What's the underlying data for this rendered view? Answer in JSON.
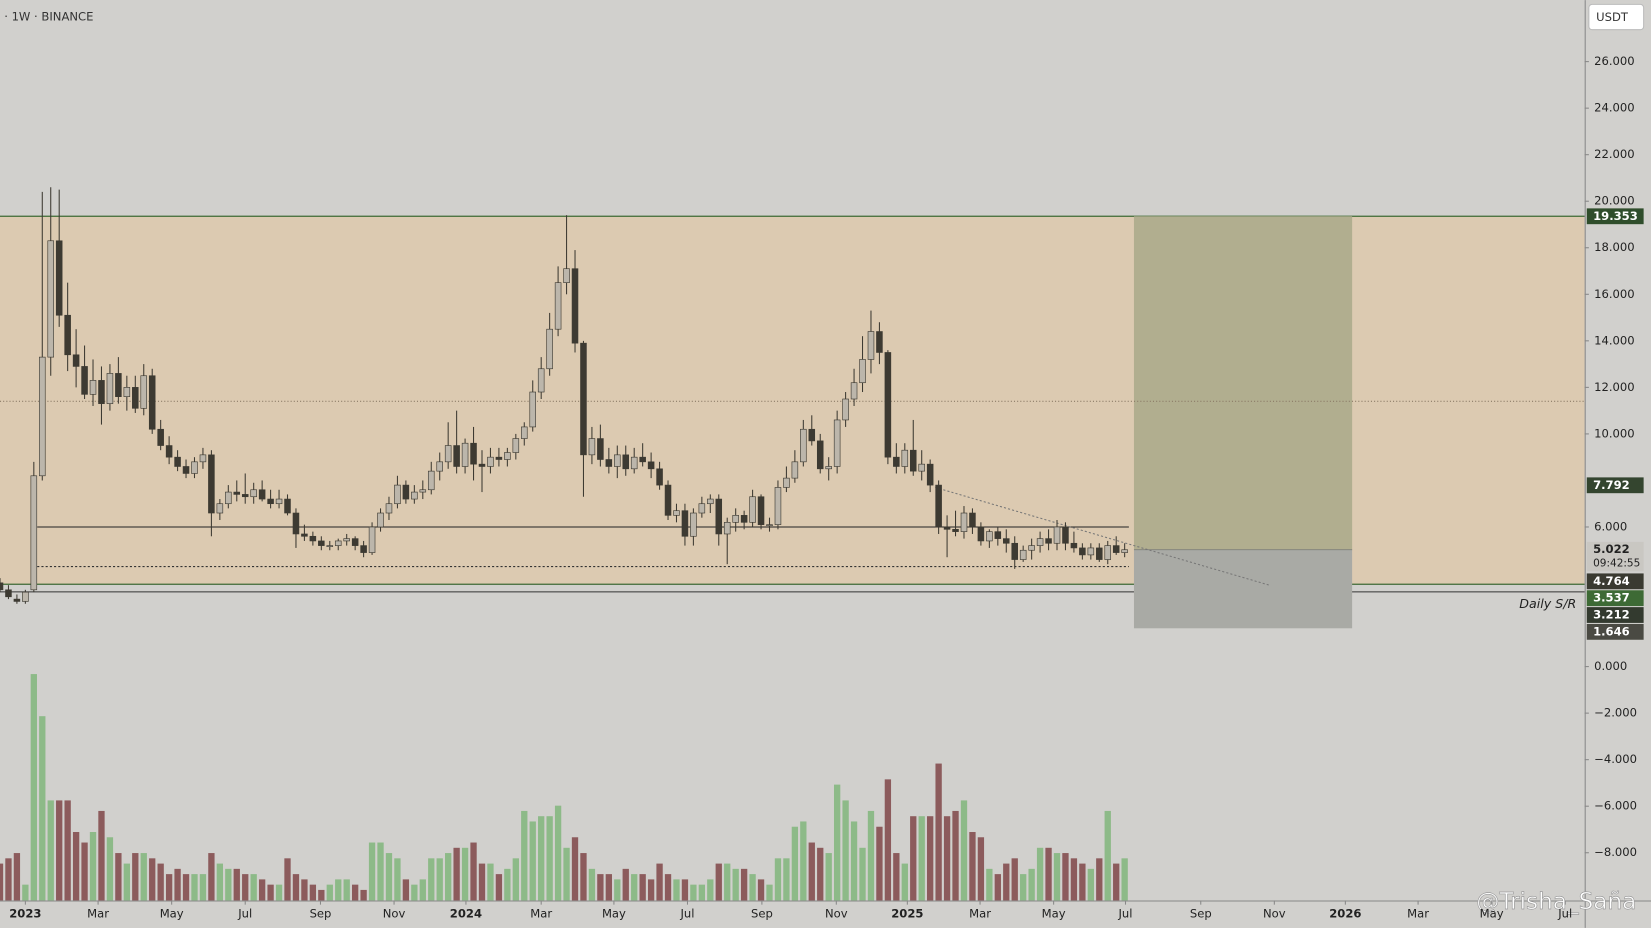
{
  "chart_data": {
    "type": "candlestick",
    "title": "· 1W · BINANCE",
    "currency": "USDT",
    "countdown": "09:42:55",
    "annotation": "Daily S/R",
    "watermark": "@Trisha_Saña",
    "xlim": [
      -3,
      184.4
    ],
    "ylim": [
      -10.05,
      28.64
    ],
    "volume_ylim": [
      0,
      220
    ],
    "xticks": [
      {
        "value": 0,
        "label": "2023"
      },
      {
        "value": 8.6,
        "label": "Mar"
      },
      {
        "value": 17.3,
        "label": "May"
      },
      {
        "value": 26,
        "label": "Jul"
      },
      {
        "value": 34.9,
        "label": "Sep"
      },
      {
        "value": 43.6,
        "label": "Nov"
      },
      {
        "value": 52.1,
        "label": "2024"
      },
      {
        "value": 61,
        "label": "Mar"
      },
      {
        "value": 69.6,
        "label": "May"
      },
      {
        "value": 78.3,
        "label": "Jul"
      },
      {
        "value": 87.1,
        "label": "Sep"
      },
      {
        "value": 95.9,
        "label": "Nov"
      },
      {
        "value": 104.3,
        "label": "2025"
      },
      {
        "value": 112.9,
        "label": "Mar"
      },
      {
        "value": 121.6,
        "label": "May"
      },
      {
        "value": 130.1,
        "label": "Jul"
      },
      {
        "value": 139,
        "label": "Sep"
      },
      {
        "value": 147.7,
        "label": "Nov"
      },
      {
        "value": 156.1,
        "label": "2026"
      },
      {
        "value": 164.7,
        "label": "Mar"
      },
      {
        "value": 173.4,
        "label": "May"
      },
      {
        "value": 182.1,
        "label": "Jul"
      }
    ],
    "yticks": [
      {
        "value": 26,
        "label": "26.000"
      },
      {
        "value": 24,
        "label": "24.000"
      },
      {
        "value": 22,
        "label": "22.000"
      },
      {
        "value": 20,
        "label": "20.000"
      },
      {
        "value": 18,
        "label": "18.000"
      },
      {
        "value": 16,
        "label": "16.000"
      },
      {
        "value": 14,
        "label": "14.000"
      },
      {
        "value": 12,
        "label": "12.000"
      },
      {
        "value": 10,
        "label": "10.000"
      },
      {
        "value": 6,
        "label": "6.000"
      },
      {
        "value": 0,
        "label": "0.000"
      },
      {
        "value": -2,
        "label": "−2.000"
      },
      {
        "value": -4,
        "label": "−4.000"
      },
      {
        "value": -6,
        "label": "−6.000"
      },
      {
        "value": -8,
        "label": "−8.000"
      }
    ],
    "up_color": "#bcb6ab",
    "down_color": "#3d3a32",
    "volume_up_color": "#8dba88",
    "volume_down_color": "#8c5b5c",
    "x": [
      -3,
      -2,
      -1,
      0,
      1,
      2,
      3,
      4,
      5,
      6,
      7,
      8,
      9,
      10,
      11,
      12,
      13,
      14,
      15,
      16,
      17,
      18,
      19,
      20,
      21,
      22,
      23,
      24,
      25,
      26,
      27,
      28,
      29,
      30,
      31,
      32,
      33,
      34,
      35,
      36,
      37,
      38,
      39,
      40,
      41,
      42,
      43,
      44,
      45,
      46,
      47,
      48,
      49,
      50,
      51,
      52,
      53,
      54,
      55,
      56,
      57,
      58,
      59,
      60,
      61,
      62,
      63,
      64,
      65,
      66,
      67,
      68,
      69,
      70,
      71,
      72,
      73,
      74,
      75,
      76,
      77,
      78,
      79,
      80,
      81,
      82,
      83,
      84,
      85,
      86,
      87,
      88,
      89,
      90,
      91,
      92,
      93,
      94,
      95,
      96,
      97,
      98,
      99,
      100,
      101,
      102,
      103,
      104,
      105,
      106,
      107,
      108,
      109,
      110,
      111,
      112,
      113,
      114,
      115,
      116,
      117,
      118,
      119,
      120,
      121,
      122,
      123,
      124,
      125,
      126,
      127,
      128,
      129,
      130
    ],
    "ohlc": [
      [
        3.6,
        3.8,
        3.2,
        3.3
      ],
      [
        3.3,
        3.5,
        2.9,
        3.0
      ],
      [
        2.9,
        3.1,
        2.7,
        2.8
      ],
      [
        2.8,
        3.3,
        2.7,
        3.2
      ],
      [
        3.3,
        8.8,
        3.2,
        8.2
      ],
      [
        8.2,
        20.4,
        8.0,
        13.3
      ],
      [
        13.3,
        20.6,
        12.5,
        18.3
      ],
      [
        18.3,
        20.5,
        14.6,
        15.1
      ],
      [
        15.1,
        16.5,
        12.7,
        13.4
      ],
      [
        13.4,
        14.5,
        12.0,
        12.9
      ],
      [
        12.9,
        13.8,
        11.5,
        11.7
      ],
      [
        11.7,
        13.2,
        11.2,
        12.3
      ],
      [
        12.3,
        12.9,
        10.4,
        11.3
      ],
      [
        11.3,
        13.0,
        11.0,
        12.6
      ],
      [
        12.6,
        13.3,
        11.3,
        11.6
      ],
      [
        11.6,
        12.5,
        11.0,
        12.0
      ],
      [
        12.0,
        12.5,
        10.9,
        11.1
      ],
      [
        11.1,
        13.0,
        10.8,
        12.5
      ],
      [
        12.5,
        12.8,
        10.0,
        10.2
      ],
      [
        10.2,
        10.6,
        9.3,
        9.5
      ],
      [
        9.5,
        9.9,
        8.7,
        9.0
      ],
      [
        9.0,
        9.3,
        8.4,
        8.6
      ],
      [
        8.6,
        8.9,
        8.1,
        8.3
      ],
      [
        8.3,
        9.0,
        8.1,
        8.8
      ],
      [
        8.8,
        9.4,
        8.5,
        9.1
      ],
      [
        9.1,
        9.3,
        5.6,
        6.6
      ],
      [
        6.6,
        7.2,
        6.3,
        7.0
      ],
      [
        7.0,
        7.8,
        6.8,
        7.5
      ],
      [
        7.5,
        8.0,
        7.1,
        7.4
      ],
      [
        7.4,
        8.3,
        7.0,
        7.3
      ],
      [
        7.3,
        7.9,
        7.0,
        7.6
      ],
      [
        7.6,
        8.0,
        7.1,
        7.2
      ],
      [
        7.2,
        7.6,
        6.8,
        7.0
      ],
      [
        7.0,
        7.6,
        6.8,
        7.2
      ],
      [
        7.2,
        7.4,
        6.5,
        6.6
      ],
      [
        6.6,
        6.8,
        5.1,
        5.7
      ],
      [
        5.7,
        6.1,
        5.4,
        5.6
      ],
      [
        5.6,
        5.8,
        5.2,
        5.4
      ],
      [
        5.4,
        5.6,
        5.0,
        5.2
      ],
      [
        5.2,
        5.4,
        5.0,
        5.2
      ],
      [
        5.2,
        5.5,
        5.0,
        5.4
      ],
      [
        5.4,
        5.7,
        5.2,
        5.5
      ],
      [
        5.5,
        5.6,
        5.0,
        5.2
      ],
      [
        5.2,
        5.4,
        4.7,
        4.9
      ],
      [
        4.9,
        6.2,
        4.8,
        6.0
      ],
      [
        6.0,
        6.8,
        5.8,
        6.6
      ],
      [
        6.6,
        7.3,
        6.3,
        7.0
      ],
      [
        7.0,
        8.2,
        6.8,
        7.8
      ],
      [
        7.8,
        8.0,
        7.0,
        7.2
      ],
      [
        7.2,
        7.8,
        7.0,
        7.5
      ],
      [
        7.5,
        8.0,
        7.2,
        7.6
      ],
      [
        7.6,
        8.8,
        7.4,
        8.4
      ],
      [
        8.4,
        9.2,
        8.0,
        8.8
      ],
      [
        8.8,
        10.5,
        8.5,
        9.5
      ],
      [
        9.5,
        11.0,
        8.3,
        8.6
      ],
      [
        8.6,
        9.8,
        8.3,
        9.6
      ],
      [
        9.6,
        10.3,
        8.0,
        8.7
      ],
      [
        8.7,
        9.3,
        7.5,
        8.6
      ],
      [
        8.6,
        9.4,
        8.3,
        9.0
      ],
      [
        9.0,
        9.4,
        8.6,
        8.9
      ],
      [
        8.9,
        9.4,
        8.6,
        9.2
      ],
      [
        9.2,
        10.0,
        8.9,
        9.8
      ],
      [
        9.8,
        10.5,
        9.5,
        10.3
      ],
      [
        10.3,
        12.3,
        10.1,
        11.8
      ],
      [
        11.8,
        13.3,
        11.5,
        12.8
      ],
      [
        12.8,
        15.2,
        12.5,
        14.5
      ],
      [
        14.5,
        17.2,
        14.2,
        16.5
      ],
      [
        16.5,
        19.4,
        16.0,
        17.1
      ],
      [
        17.1,
        17.9,
        13.5,
        13.9
      ],
      [
        13.9,
        14.0,
        7.3,
        9.1
      ],
      [
        9.1,
        10.3,
        8.7,
        9.8
      ],
      [
        9.8,
        10.4,
        8.6,
        8.9
      ],
      [
        8.9,
        9.4,
        8.3,
        8.6
      ],
      [
        8.6,
        9.5,
        8.1,
        9.1
      ],
      [
        9.1,
        9.5,
        8.2,
        8.5
      ],
      [
        8.5,
        9.4,
        8.3,
        9.0
      ],
      [
        9.0,
        9.6,
        8.6,
        8.8
      ],
      [
        8.8,
        9.2,
        8.1,
        8.5
      ],
      [
        8.5,
        8.8,
        7.6,
        7.8
      ],
      [
        7.8,
        8.0,
        6.3,
        6.5
      ],
      [
        6.5,
        7.0,
        6.2,
        6.7
      ],
      [
        6.7,
        7.0,
        5.2,
        5.6
      ],
      [
        5.6,
        6.8,
        5.2,
        6.6
      ],
      [
        6.6,
        7.3,
        6.4,
        7.0
      ],
      [
        7.0,
        7.4,
        6.6,
        7.2
      ],
      [
        7.2,
        7.4,
        5.2,
        5.7
      ],
      [
        5.7,
        6.4,
        4.4,
        6.2
      ],
      [
        6.2,
        6.8,
        5.8,
        6.5
      ],
      [
        6.5,
        6.7,
        5.9,
        6.2
      ],
      [
        6.2,
        7.6,
        6.0,
        7.3
      ],
      [
        7.3,
        7.4,
        5.9,
        6.1
      ],
      [
        6.1,
        6.4,
        5.8,
        6.1
      ],
      [
        6.1,
        8.0,
        5.9,
        7.7
      ],
      [
        7.7,
        8.6,
        7.5,
        8.1
      ],
      [
        8.1,
        9.3,
        7.9,
        8.8
      ],
      [
        8.8,
        10.6,
        8.6,
        10.2
      ],
      [
        10.2,
        10.8,
        9.5,
        9.7
      ],
      [
        9.7,
        10.0,
        8.3,
        8.5
      ],
      [
        8.5,
        9.0,
        8.0,
        8.6
      ],
      [
        8.6,
        11.0,
        8.3,
        10.6
      ],
      [
        10.6,
        11.8,
        10.3,
        11.5
      ],
      [
        11.5,
        12.8,
        11.2,
        12.2
      ],
      [
        12.2,
        14.2,
        11.8,
        13.2
      ],
      [
        13.2,
        15.3,
        12.6,
        14.4
      ],
      [
        14.4,
        14.8,
        13.0,
        13.5
      ],
      [
        13.5,
        13.6,
        8.7,
        9.0
      ],
      [
        9.0,
        9.6,
        8.3,
        8.6
      ],
      [
        8.6,
        9.6,
        8.3,
        9.3
      ],
      [
        9.3,
        10.6,
        8.2,
        8.4
      ],
      [
        8.4,
        9.3,
        8.0,
        8.7
      ],
      [
        8.7,
        8.9,
        7.5,
        7.8
      ],
      [
        7.8,
        8.0,
        5.7,
        6.0
      ],
      [
        6.0,
        6.5,
        4.7,
        5.9
      ],
      [
        5.9,
        6.7,
        5.6,
        5.8
      ],
      [
        5.8,
        6.9,
        5.5,
        6.6
      ],
      [
        6.6,
        6.8,
        5.7,
        6.0
      ],
      [
        6.0,
        6.2,
        5.2,
        5.4
      ],
      [
        5.4,
        5.9,
        5.1,
        5.8
      ],
      [
        5.8,
        6.0,
        5.2,
        5.5
      ],
      [
        5.5,
        5.9,
        4.9,
        5.3
      ],
      [
        5.3,
        5.6,
        4.2,
        4.6
      ],
      [
        4.6,
        5.2,
        4.5,
        5.0
      ],
      [
        5.0,
        5.5,
        4.6,
        5.2
      ],
      [
        5.2,
        5.8,
        4.9,
        5.5
      ],
      [
        5.5,
        5.9,
        5.0,
        5.3
      ],
      [
        5.3,
        6.3,
        5.0,
        6.0
      ],
      [
        6.0,
        6.2,
        5.0,
        5.3
      ],
      [
        5.3,
        5.8,
        4.9,
        5.1
      ],
      [
        5.1,
        5.3,
        4.6,
        4.8
      ],
      [
        4.8,
        5.3,
        4.6,
        5.1
      ],
      [
        5.1,
        5.3,
        4.5,
        4.6
      ],
      [
        4.6,
        5.4,
        4.4,
        5.2
      ],
      [
        5.2,
        5.6,
        4.8,
        4.9
      ],
      [
        4.9,
        5.3,
        4.7,
        5.022
      ]
    ],
    "volume": [
      35,
      40,
      45,
      15,
      215,
      175,
      95,
      95,
      95,
      65,
      55,
      65,
      85,
      60,
      45,
      35,
      45,
      45,
      40,
      35,
      25,
      30,
      25,
      25,
      25,
      45,
      35,
      30,
      30,
      25,
      25,
      20,
      15,
      15,
      40,
      25,
      20,
      15,
      10,
      15,
      20,
      20,
      15,
      10,
      55,
      55,
      45,
      40,
      20,
      15,
      20,
      40,
      40,
      45,
      50,
      50,
      55,
      35,
      35,
      25,
      30,
      40,
      85,
      75,
      80,
      80,
      90,
      50,
      60,
      45,
      30,
      25,
      25,
      20,
      30,
      25,
      25,
      20,
      35,
      25,
      20,
      20,
      15,
      15,
      20,
      35,
      35,
      30,
      30,
      25,
      20,
      15,
      40,
      40,
      70,
      75,
      55,
      50,
      45,
      110,
      95,
      75,
      50,
      85,
      70,
      115,
      45,
      35,
      80,
      80,
      80,
      130,
      80,
      85,
      95,
      65,
      60,
      30,
      25,
      35,
      40,
      25,
      30,
      50,
      50,
      45,
      45,
      40,
      35,
      30,
      40,
      85,
      35,
      40
    ],
    "price_tags": [
      {
        "value": 19.353,
        "label": "19.353",
        "color": "#2f4d2b"
      },
      {
        "value": 7.792,
        "label": "7.792",
        "color": "#34452f"
      },
      {
        "value": 5.022,
        "label": "5.022",
        "color": "#c9c7c2"
      },
      {
        "value": 4.764,
        "label": "4.764",
        "color": "#3a3a31"
      },
      {
        "value": 3.537,
        "label": "3.537",
        "color": "#3d6a35"
      },
      {
        "value": 3.212,
        "label": "3.212",
        "color": "#333a2f"
      },
      {
        "value": 1.646,
        "label": "1.646",
        "color": "#4a4a43"
      }
    ],
    "range_box_color": "#dccab1",
    "target_box_color": "#b1ae8f",
    "stop_box_color": "#a9aaa5",
    "position_x": [
      131.1,
      156.9
    ],
    "sr_line": {
      "y": 6.0,
      "x": [
        1.4,
        130.5
      ]
    },
    "support_line": {
      "y": 4.3,
      "x": [
        1.4,
        130.5
      ]
    },
    "mid_line": 11.4,
    "trendline": {
      "x": [
        107.6,
        147.1
      ],
      "y": [
        7.7,
        3.5
      ]
    }
  }
}
